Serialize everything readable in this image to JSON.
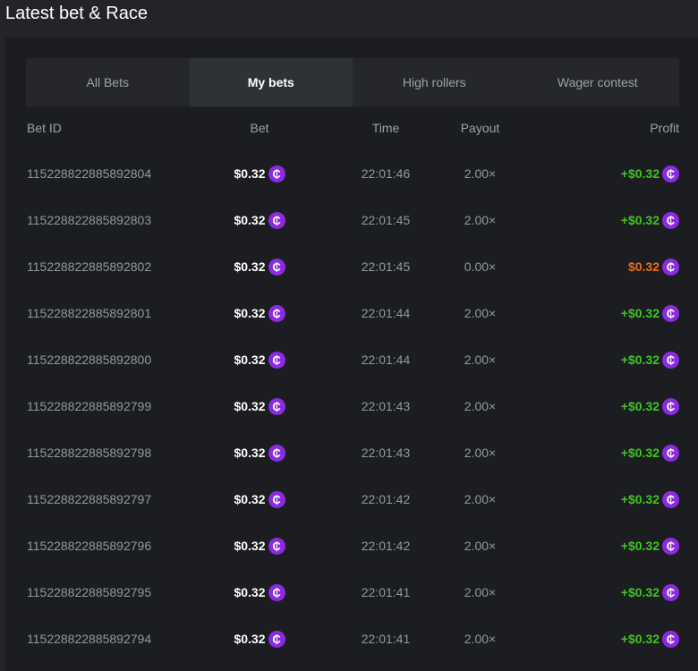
{
  "title": "Latest bet & Race",
  "tabs": [
    {
      "label": "All Bets"
    },
    {
      "label": "My bets",
      "active": true
    },
    {
      "label": "High rollers"
    },
    {
      "label": "Wager contest"
    }
  ],
  "columns": {
    "id": "Bet ID",
    "bet": "Bet",
    "time": "Time",
    "payout": "Payout",
    "profit": "Profit"
  },
  "colors": {
    "win": "#3fc41f",
    "loss": "#f06a0f",
    "coin": "#8a2be2"
  },
  "coin_icon": "₵",
  "rows": [
    {
      "id": "115228822885892804",
      "bet": "$0.32",
      "time": "22:01:46",
      "payout": "2.00×",
      "profit": "+$0.32",
      "win": true
    },
    {
      "id": "115228822885892803",
      "bet": "$0.32",
      "time": "22:01:45",
      "payout": "2.00×",
      "profit": "+$0.32",
      "win": true
    },
    {
      "id": "115228822885892802",
      "bet": "$0.32",
      "time": "22:01:45",
      "payout": "0.00×",
      "profit": "$0.32",
      "win": false
    },
    {
      "id": "115228822885892801",
      "bet": "$0.32",
      "time": "22:01:44",
      "payout": "2.00×",
      "profit": "+$0.32",
      "win": true
    },
    {
      "id": "115228822885892800",
      "bet": "$0.32",
      "time": "22:01:44",
      "payout": "2.00×",
      "profit": "+$0.32",
      "win": true
    },
    {
      "id": "115228822885892799",
      "bet": "$0.32",
      "time": "22:01:43",
      "payout": "2.00×",
      "profit": "+$0.32",
      "win": true
    },
    {
      "id": "115228822885892798",
      "bet": "$0.32",
      "time": "22:01:43",
      "payout": "2.00×",
      "profit": "+$0.32",
      "win": true
    },
    {
      "id": "115228822885892797",
      "bet": "$0.32",
      "time": "22:01:42",
      "payout": "2.00×",
      "profit": "+$0.32",
      "win": true
    },
    {
      "id": "115228822885892796",
      "bet": "$0.32",
      "time": "22:01:42",
      "payout": "2.00×",
      "profit": "+$0.32",
      "win": true
    },
    {
      "id": "115228822885892795",
      "bet": "$0.32",
      "time": "22:01:41",
      "payout": "2.00×",
      "profit": "+$0.32",
      "win": true
    },
    {
      "id": "115228822885892794",
      "bet": "$0.32",
      "time": "22:01:41",
      "payout": "2.00×",
      "profit": "+$0.32",
      "win": true
    }
  ]
}
